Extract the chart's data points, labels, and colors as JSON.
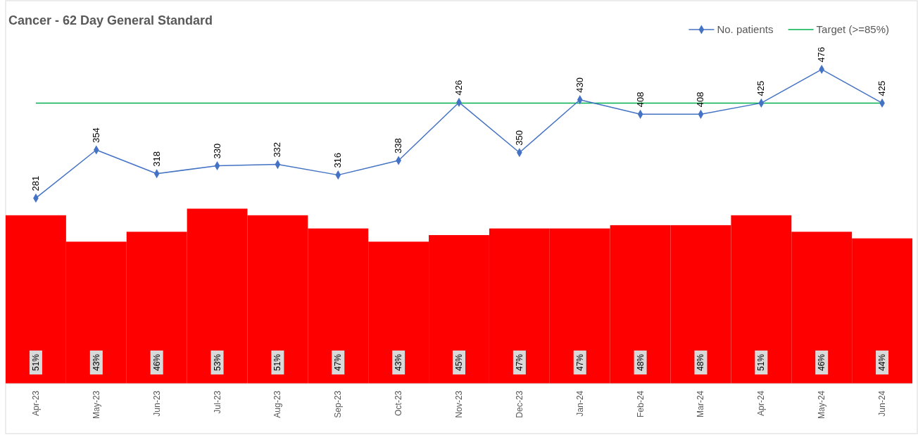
{
  "chart_data": {
    "type": "bar",
    "ylim": [
      0,
      580
    ],
    "y2lim": [
      0,
      116
    ],
    "title": "Cancer - 62 Day General Standard",
    "categories": [
      "Apr-23",
      "May-23",
      "Jun-23",
      "Jul-23",
      "Aug-23",
      "Sep-23",
      "Oct-23",
      "Nov-23",
      "Dec-23",
      "Jan-24",
      "Feb-24",
      "Mar-24",
      "Apr-24",
      "May-24",
      "Jun-24"
    ],
    "series": [
      {
        "axis": "y2",
        "color": "#ff0000",
        "values": [
          51,
          43,
          46,
          53,
          51,
          47,
          43,
          45,
          47,
          47,
          48,
          48,
          51,
          46,
          44
        ],
        "value_labels": [
          "51%",
          "43%",
          "46%",
          "53%",
          "51%",
          "47%",
          "43%",
          "45%",
          "47%",
          "47%",
          "48%",
          "48%",
          "51%",
          "46%",
          "44%"
        ]
      },
      {
        "type": "line",
        "name": "No. patients",
        "color": "#4472c4",
        "values": [
          281,
          354,
          318,
          330,
          332,
          316,
          338,
          426,
          350,
          430,
          408,
          408,
          425,
          476,
          425
        ],
        "value_labels": [
          "281",
          "354",
          "318",
          "330",
          "332",
          "316",
          "338",
          "426",
          "350",
          "430",
          "408",
          "408",
          "425",
          "476",
          "425"
        ]
      }
    ],
    "ref_lines": [
      {
        "axis": "y2",
        "value": 85,
        "label": "Target (>=85%)",
        "color": "#00b050"
      }
    ],
    "marker": "diamond",
    "legend": "top right",
    "tick_labels": "x"
  }
}
